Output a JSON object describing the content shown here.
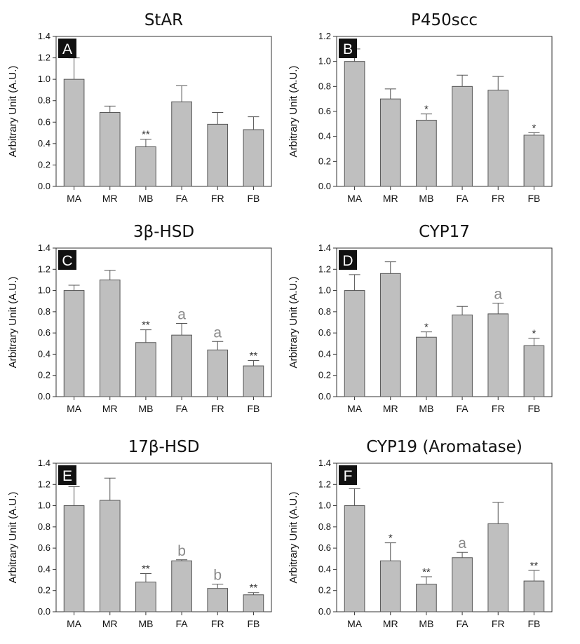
{
  "chart_data": [
    {
      "type": "bar",
      "title": "StAR",
      "panel": "A",
      "ylabel": "Arbitrary Unit (A.U.)",
      "categories": [
        "MA",
        "MR",
        "MB",
        "FA",
        "FR",
        "FB"
      ],
      "values": [
        1.0,
        0.69,
        0.37,
        0.79,
        0.58,
        0.53
      ],
      "errors": [
        0.2,
        0.06,
        0.07,
        0.15,
        0.11,
        0.12
      ],
      "annotations": [
        "",
        "",
        "**",
        "",
        "",
        ""
      ],
      "ylim": [
        0,
        1.4
      ],
      "yticks": [
        "0.0",
        "0.2",
        "0.4",
        "0.6",
        "0.8",
        "1.0",
        "1.2",
        "1.4"
      ]
    },
    {
      "type": "bar",
      "title": "P450scc",
      "panel": "B",
      "ylabel": "Arbitrary Unit (A.U.)",
      "categories": [
        "MA",
        "MR",
        "MB",
        "FA",
        "FR",
        "FB"
      ],
      "values": [
        1.0,
        0.7,
        0.53,
        0.8,
        0.77,
        0.41
      ],
      "errors": [
        0.1,
        0.08,
        0.05,
        0.09,
        0.11,
        0.02
      ],
      "annotations": [
        "",
        "",
        "*",
        "",
        "",
        "*"
      ],
      "ylim": [
        0,
        1.2
      ],
      "yticks": [
        "0.0",
        "0.2",
        "0.4",
        "0.6",
        "0.8",
        "1.0",
        "1.2"
      ]
    },
    {
      "type": "bar",
      "title": "3β-HSD",
      "panel": "C",
      "ylabel": "Arbitrary Unit (A.U.)",
      "categories": [
        "MA",
        "MR",
        "MB",
        "FA",
        "FR",
        "FB"
      ],
      "values": [
        1.0,
        1.1,
        0.51,
        0.58,
        0.44,
        0.29
      ],
      "errors": [
        0.05,
        0.09,
        0.12,
        0.11,
        0.08,
        0.05
      ],
      "annotations": [
        "",
        "",
        "**",
        "a",
        "a",
        "**"
      ],
      "ylim": [
        0,
        1.4
      ],
      "yticks": [
        "0.0",
        "0.2",
        "0.4",
        "0.6",
        "0.8",
        "1.0",
        "1.2",
        "1.4"
      ]
    },
    {
      "type": "bar",
      "title": "CYP17",
      "panel": "D",
      "ylabel": "Arbitrary Unit (A.U.)",
      "categories": [
        "MA",
        "MR",
        "MB",
        "FA",
        "FR",
        "FB"
      ],
      "values": [
        1.0,
        1.16,
        0.56,
        0.77,
        0.78,
        0.48
      ],
      "errors": [
        0.15,
        0.11,
        0.05,
        0.08,
        0.1,
        0.07
      ],
      "annotations": [
        "",
        "",
        "*",
        "",
        "a",
        "*"
      ],
      "ylim": [
        0,
        1.4
      ],
      "yticks": [
        "0.0",
        "0.2",
        "0.4",
        "0.6",
        "0.8",
        "1.0",
        "1.2",
        "1.4"
      ]
    },
    {
      "type": "bar",
      "title": "17β-HSD",
      "panel": "E",
      "ylabel": "Arbitrary Unit (A.U.)",
      "categories": [
        "MA",
        "MR",
        "MB",
        "FA",
        "FR",
        "FB"
      ],
      "values": [
        1.0,
        1.05,
        0.28,
        0.48,
        0.22,
        0.16
      ],
      "errors": [
        0.18,
        0.21,
        0.08,
        0.01,
        0.04,
        0.02
      ],
      "annotations": [
        "",
        "",
        "**",
        "b",
        "b",
        "**"
      ],
      "ylim": [
        0,
        1.4
      ],
      "yticks": [
        "0.0",
        "0.2",
        "0.4",
        "0.6",
        "0.8",
        "1.0",
        "1.2",
        "1.4"
      ]
    },
    {
      "type": "bar",
      "title": "CYP19 (Aromatase)",
      "panel": "F",
      "ylabel": "Arbitrary Unit (A.U.)",
      "categories": [
        "MA",
        "MR",
        "MB",
        "FA",
        "FR",
        "FB"
      ],
      "values": [
        1.0,
        0.48,
        0.26,
        0.51,
        0.83,
        0.29
      ],
      "errors": [
        0.16,
        0.17,
        0.07,
        0.05,
        0.2,
        0.1
      ],
      "annotations": [
        "",
        "*",
        "**",
        "a",
        "",
        "**"
      ],
      "ylim": [
        0,
        1.4
      ],
      "yticks": [
        "0.0",
        "0.2",
        "0.4",
        "0.6",
        "0.8",
        "1.0",
        "1.2",
        "1.4"
      ]
    }
  ],
  "colors": {
    "bar_fill": "#bfbfbf",
    "bar_stroke": "#555555",
    "axis": "#333333",
    "text": "#111111",
    "letter_annotation": "#8a8a8a"
  }
}
